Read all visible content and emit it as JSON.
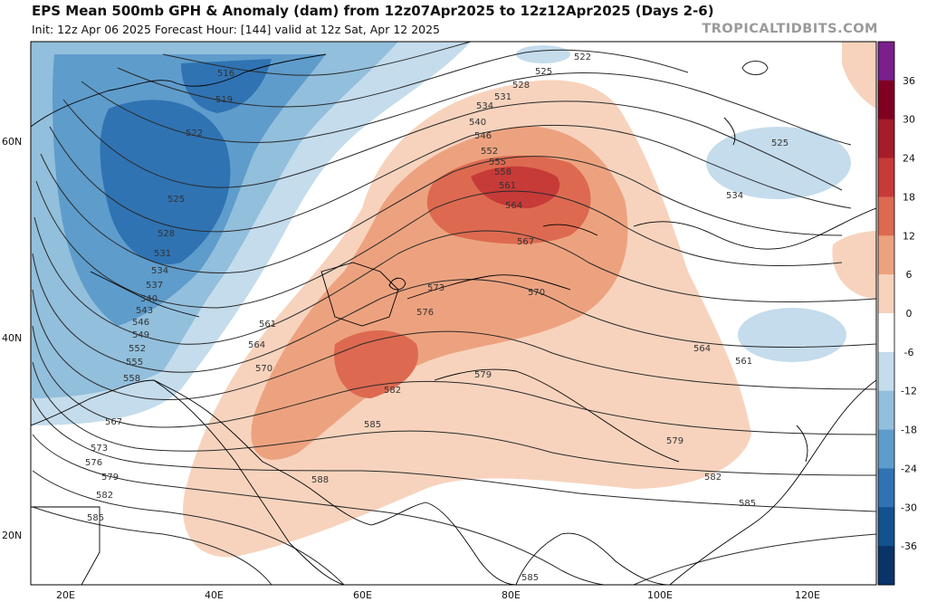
{
  "header": {
    "title": "EPS Mean 500mb GPH & Anomaly (dam) from 12z07Apr2025 to 12z12Apr2025 (Days 2-6)",
    "subtitle": "Init: 12z Apr 06 2025   Forecast Hour: [144]   valid at 12z Sat, Apr 12 2025",
    "brand": "TROPICALTIDBITS.COM"
  },
  "map": {
    "lon_labels": [
      "20E",
      "40E",
      "60E",
      "80E",
      "100E",
      "120E"
    ],
    "lat_labels": [
      "60N",
      "40N",
      "20N"
    ],
    "contour_labels": [
      "516",
      "519",
      "522",
      "525",
      "528",
      "531",
      "534",
      "537",
      "540",
      "543",
      "546",
      "549",
      "552",
      "555",
      "558",
      "561",
      "564",
      "567",
      "570",
      "573",
      "576",
      "579",
      "582",
      "585",
      "588",
      "522",
      "525",
      "528",
      "531",
      "534",
      "540",
      "546",
      "552",
      "555",
      "558",
      "561",
      "564",
      "567",
      "570",
      "573",
      "576",
      "579",
      "582",
      "585",
      "561",
      "564",
      "570",
      "525",
      "534",
      "561",
      "564",
      "579",
      "582",
      "585",
      "585"
    ]
  },
  "colorbar": {
    "labels": [
      "36",
      "30",
      "24",
      "18",
      "12",
      "6",
      "0",
      "-6",
      "-12",
      "-18",
      "-24",
      "-30",
      "-36"
    ],
    "colors": [
      "#7a1f8c",
      "#7f0020",
      "#a51c2a",
      "#c63a38",
      "#dd6a50",
      "#eda27f",
      "#f7d3bd",
      "#ffffff",
      "#c4dcec",
      "#92bfdc",
      "#5e9ccb",
      "#2f73b3",
      "#12528f",
      "#0a3468"
    ]
  }
}
